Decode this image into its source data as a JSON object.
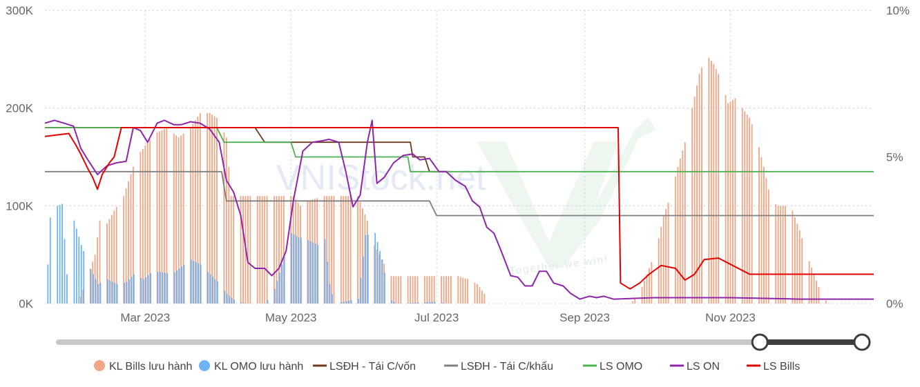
{
  "watermark": {
    "site": "VNIStock.net",
    "slogan": "Together we win!",
    "color": "#2e8b57"
  },
  "colors": {
    "bills_bar": "#f0a584",
    "omo_bar": "#6fb3f2",
    "lsdh_tai_cvon": "#6b3a1f",
    "lsdh_tai_ckhau": "#7f7f7f",
    "ls_omo": "#4caf50",
    "ls_on": "#8e24aa",
    "ls_bills": "#e00000",
    "grid": "#c8c8c8",
    "slider_track": "#c8c8c8",
    "slider_active": "#3c3c3c"
  },
  "slider": {
    "start_fraction": 0.86,
    "end_fraction": 1.0
  },
  "chart_data": {
    "type": "bar",
    "title": "",
    "xlabel": "",
    "ylabel": "",
    "x_range": [
      "2023-01-18",
      "2023-12-31"
    ],
    "x_ticks": [
      {
        "date": "2023-03-01",
        "label": "Mar 2023"
      },
      {
        "date": "2023-05-01",
        "label": "May 2023"
      },
      {
        "date": "2023-07-01",
        "label": "Jul 2023"
      },
      {
        "date": "2023-09-01",
        "label": "Sep 2023"
      },
      {
        "date": "2023-11-01",
        "label": "Nov 2023"
      }
    ],
    "y_left": {
      "min": 0,
      "max": 300000,
      "ticks": [
        0,
        100000,
        200000,
        300000
      ],
      "tick_labels": [
        "0K",
        "100K",
        "200K",
        "300K"
      ]
    },
    "y_right": {
      "min": 0,
      "max": 10,
      "ticks": [
        0,
        5,
        10
      ],
      "tick_labels": [
        "0%",
        "5%",
        "10%"
      ]
    },
    "grid": true,
    "legend_position": "bottom",
    "legend": [
      {
        "label": "KL Bills lưu hành",
        "marker": "circle",
        "color": "#f0a584"
      },
      {
        "label": "KL OMO lưu hành",
        "marker": "circle",
        "color": "#6fb3f2"
      },
      {
        "label": "LSĐH - Tái C/vốn",
        "marker": "line",
        "color": "#6b3a1f"
      },
      {
        "label": "LSĐH - Tái C/khấu",
        "marker": "line",
        "color": "#7f7f7f"
      },
      {
        "label": "LS OMO",
        "marker": "line",
        "color": "#4caf50"
      },
      {
        "label": "LS ON",
        "marker": "line",
        "color": "#8e24aa"
      },
      {
        "label": "LS Bills",
        "marker": "line",
        "color": "#e00000"
      }
    ],
    "bar_series": [
      {
        "name": "KL Bills lưu hành",
        "axis": "left",
        "points": [
          [
            "2023-01-19",
            0
          ],
          [
            "2023-02-01",
            0
          ],
          [
            "2023-02-08",
            50000
          ],
          [
            "2023-02-10",
            85000
          ],
          [
            "2023-02-13",
            82000
          ],
          [
            "2023-02-16",
            95000
          ],
          [
            "2023-02-20",
            110000
          ],
          [
            "2023-02-24",
            140000
          ],
          [
            "2023-02-27",
            155000
          ],
          [
            "2023-03-02",
            165000
          ],
          [
            "2023-03-06",
            175000
          ],
          [
            "2023-03-10",
            180000
          ],
          [
            "2023-03-15",
            170000
          ],
          [
            "2023-03-20",
            180000
          ],
          [
            "2023-03-24",
            195000
          ],
          [
            "2023-03-28",
            195000
          ],
          [
            "2023-03-31",
            190000
          ],
          [
            "2023-04-04",
            170000
          ],
          [
            "2023-04-06",
            110000
          ],
          [
            "2023-04-10",
            110000
          ],
          [
            "2023-04-17",
            110000
          ],
          [
            "2023-04-24",
            110000
          ],
          [
            "2023-05-02",
            110000
          ],
          [
            "2023-05-05",
            100000
          ],
          [
            "2023-05-08",
            105000
          ],
          [
            "2023-05-15",
            110000
          ],
          [
            "2023-05-22",
            110000
          ],
          [
            "2023-05-29",
            110000
          ],
          [
            "2023-06-02",
            85000
          ],
          [
            "2023-06-05",
            60000
          ],
          [
            "2023-06-08",
            45000
          ],
          [
            "2023-06-12",
            28000
          ],
          [
            "2023-06-19",
            28000
          ],
          [
            "2023-06-26",
            28000
          ],
          [
            "2023-07-03",
            28000
          ],
          [
            "2023-07-10",
            28000
          ],
          [
            "2023-07-14",
            25000
          ],
          [
            "2023-07-18",
            20000
          ],
          [
            "2023-07-21",
            10000
          ],
          [
            "2023-07-24",
            0
          ],
          [
            "2023-09-20",
            0
          ],
          [
            "2023-09-24",
            10000
          ],
          [
            "2023-09-27",
            30000
          ],
          [
            "2023-10-01",
            55000
          ],
          [
            "2023-10-04",
            90000
          ],
          [
            "2023-10-07",
            110000
          ],
          [
            "2023-10-10",
            140000
          ],
          [
            "2023-10-13",
            165000
          ],
          [
            "2023-10-16",
            200000
          ],
          [
            "2023-10-19",
            235000
          ],
          [
            "2023-10-22",
            255000
          ],
          [
            "2023-10-25",
            245000
          ],
          [
            "2023-10-28",
            230000
          ],
          [
            "2023-10-31",
            205000
          ],
          [
            "2023-11-03",
            210000
          ],
          [
            "2023-11-06",
            200000
          ],
          [
            "2023-11-09",
            190000
          ],
          [
            "2023-11-12",
            170000
          ],
          [
            "2023-11-15",
            140000
          ],
          [
            "2023-11-18",
            105000
          ],
          [
            "2023-11-21",
            100000
          ],
          [
            "2023-11-24",
            100000
          ],
          [
            "2023-11-27",
            95000
          ],
          [
            "2023-11-30",
            75000
          ],
          [
            "2023-12-03",
            50000
          ],
          [
            "2023-12-06",
            30000
          ],
          [
            "2023-12-09",
            10000
          ],
          [
            "2023-12-12",
            0
          ],
          [
            "2023-12-31",
            0
          ]
        ]
      },
      {
        "name": "KL OMO lưu hành",
        "axis": "left",
        "points": [
          [
            "2023-01-19",
            40000
          ],
          [
            "2023-01-20",
            88000
          ],
          [
            "2023-01-23",
            100000
          ],
          [
            "2023-01-25",
            102000
          ],
          [
            "2023-01-27",
            30000
          ],
          [
            "2023-01-30",
            85000
          ],
          [
            "2023-02-02",
            60000
          ],
          [
            "2023-02-06",
            35000
          ],
          [
            "2023-02-09",
            20000
          ],
          [
            "2023-02-13",
            25000
          ],
          [
            "2023-02-17",
            20000
          ],
          [
            "2023-02-21",
            22000
          ],
          [
            "2023-02-24",
            30000
          ],
          [
            "2023-02-28",
            25000
          ],
          [
            "2023-03-04",
            33000
          ],
          [
            "2023-03-08",
            32000
          ],
          [
            "2023-03-12",
            30000
          ],
          [
            "2023-03-16",
            38000
          ],
          [
            "2023-03-20",
            45000
          ],
          [
            "2023-03-24",
            40000
          ],
          [
            "2023-03-28",
            30000
          ],
          [
            "2023-04-01",
            20000
          ],
          [
            "2023-04-04",
            10000
          ],
          [
            "2023-04-08",
            2000
          ],
          [
            "2023-04-12",
            0
          ],
          [
            "2023-04-20",
            0
          ],
          [
            "2023-04-24",
            15000
          ],
          [
            "2023-04-27",
            40000
          ],
          [
            "2023-05-01",
            72000
          ],
          [
            "2023-05-04",
            68000
          ],
          [
            "2023-05-08",
            65000
          ],
          [
            "2023-05-12",
            60000
          ],
          [
            "2023-05-15",
            66000
          ],
          [
            "2023-05-17",
            20000
          ],
          [
            "2023-05-19",
            0
          ],
          [
            "2023-05-29",
            5000
          ],
          [
            "2023-06-01",
            70000
          ],
          [
            "2023-06-05",
            72000
          ],
          [
            "2023-06-08",
            45000
          ],
          [
            "2023-06-11",
            5000
          ],
          [
            "2023-06-14",
            0
          ],
          [
            "2023-07-01",
            2000
          ],
          [
            "2023-07-05",
            0
          ],
          [
            "2023-12-31",
            0
          ]
        ]
      }
    ],
    "series": [
      {
        "name": "LSĐH - Tái C/vốn",
        "axis": "right",
        "step": true,
        "points": [
          [
            "2023-01-18",
            6.0
          ],
          [
            "2023-04-16",
            6.0
          ],
          [
            "2023-04-20",
            5.5
          ],
          [
            "2023-06-20",
            5.5
          ],
          [
            "2023-06-21",
            5.0
          ],
          [
            "2023-06-26",
            5.0
          ],
          [
            "2023-06-28",
            4.5
          ],
          [
            "2023-07-05",
            4.5
          ]
        ]
      },
      {
        "name": "LSĐH - Tái C/khấu",
        "axis": "right",
        "step": true,
        "points": [
          [
            "2023-01-18",
            4.5
          ],
          [
            "2023-04-02",
            4.5
          ],
          [
            "2023-04-04",
            3.5
          ],
          [
            "2023-06-28",
            3.5
          ],
          [
            "2023-07-01",
            3.0
          ],
          [
            "2023-12-31",
            3.0
          ]
        ]
      },
      {
        "name": "LS OMO",
        "axis": "right",
        "step": true,
        "points": [
          [
            "2023-01-18",
            6.0
          ],
          [
            "2023-03-31",
            6.0
          ],
          [
            "2023-04-03",
            5.5
          ],
          [
            "2023-05-01",
            5.5
          ],
          [
            "2023-05-03",
            5.0
          ],
          [
            "2023-06-19",
            5.0
          ],
          [
            "2023-06-20",
            4.5
          ],
          [
            "2023-12-31",
            4.5
          ]
        ]
      },
      {
        "name": "LS ON",
        "axis": "right",
        "step": false,
        "points": [
          [
            "2023-01-18",
            6.15
          ],
          [
            "2023-01-22",
            6.25
          ],
          [
            "2023-01-26",
            6.15
          ],
          [
            "2023-01-30",
            6.05
          ],
          [
            "2023-02-02",
            5.3
          ],
          [
            "2023-02-05",
            4.9
          ],
          [
            "2023-02-09",
            4.4
          ],
          [
            "2023-02-13",
            4.7
          ],
          [
            "2023-02-17",
            4.8
          ],
          [
            "2023-02-21",
            4.85
          ],
          [
            "2023-02-24",
            6.0
          ],
          [
            "2023-02-27",
            5.9
          ],
          [
            "2023-03-02",
            5.5
          ],
          [
            "2023-03-06",
            6.15
          ],
          [
            "2023-03-09",
            6.25
          ],
          [
            "2023-03-13",
            6.1
          ],
          [
            "2023-03-16",
            6.1
          ],
          [
            "2023-03-20",
            6.2
          ],
          [
            "2023-03-24",
            6.15
          ],
          [
            "2023-03-28",
            5.95
          ],
          [
            "2023-04-01",
            5.5
          ],
          [
            "2023-04-04",
            4.2
          ],
          [
            "2023-04-07",
            3.8
          ],
          [
            "2023-04-10",
            3.0
          ],
          [
            "2023-04-13",
            1.4
          ],
          [
            "2023-04-16",
            1.2
          ],
          [
            "2023-04-20",
            1.2
          ],
          [
            "2023-04-23",
            0.95
          ],
          [
            "2023-04-26",
            1.2
          ],
          [
            "2023-04-29",
            1.8
          ],
          [
            "2023-05-02",
            3.5
          ],
          [
            "2023-05-06",
            5.2
          ],
          [
            "2023-05-10",
            5.5
          ],
          [
            "2023-05-14",
            5.55
          ],
          [
            "2023-05-17",
            5.6
          ],
          [
            "2023-05-21",
            5.5
          ],
          [
            "2023-05-24",
            4.5
          ],
          [
            "2023-05-27",
            3.3
          ],
          [
            "2023-05-30",
            3.7
          ],
          [
            "2023-06-02",
            5.5
          ],
          [
            "2023-06-04",
            6.25
          ],
          [
            "2023-06-06",
            4.1
          ],
          [
            "2023-06-09",
            4.3
          ],
          [
            "2023-06-13",
            4.8
          ],
          [
            "2023-06-17",
            5.05
          ],
          [
            "2023-06-21",
            5.1
          ],
          [
            "2023-06-24",
            4.9
          ],
          [
            "2023-06-28",
            4.95
          ],
          [
            "2023-07-02",
            4.5
          ],
          [
            "2023-07-05",
            4.5
          ],
          [
            "2023-07-09",
            4.2
          ],
          [
            "2023-07-13",
            4.0
          ],
          [
            "2023-07-16",
            3.5
          ],
          [
            "2023-07-19",
            3.3
          ],
          [
            "2023-07-22",
            2.6
          ],
          [
            "2023-07-25",
            2.4
          ],
          [
            "2023-07-28",
            1.8
          ],
          [
            "2023-08-01",
            0.95
          ],
          [
            "2023-08-04",
            0.9
          ],
          [
            "2023-08-07",
            0.6
          ],
          [
            "2023-08-10",
            0.6
          ],
          [
            "2023-08-13",
            1.1
          ],
          [
            "2023-08-16",
            1.1
          ],
          [
            "2023-08-19",
            0.7
          ],
          [
            "2023-08-23",
            0.6
          ],
          [
            "2023-08-26",
            0.35
          ],
          [
            "2023-08-30",
            0.15
          ],
          [
            "2023-09-03",
            0.25
          ],
          [
            "2023-09-06",
            0.2
          ],
          [
            "2023-09-09",
            0.25
          ],
          [
            "2023-09-13",
            0.15
          ],
          [
            "2023-09-30",
            0.2
          ],
          [
            "2023-10-15",
            0.2
          ],
          [
            "2023-11-01",
            0.2
          ],
          [
            "2023-11-30",
            0.15
          ],
          [
            "2023-12-31",
            0.15
          ]
        ]
      },
      {
        "name": "LS Bills",
        "axis": "right",
        "step": true,
        "points": [
          [
            "2023-01-18",
            5.7
          ],
          [
            "2023-01-28",
            5.8
          ],
          [
            "2023-01-31",
            5.4
          ],
          [
            "2023-02-02",
            5.1
          ],
          [
            "2023-02-05",
            4.6
          ],
          [
            "2023-02-07",
            4.3
          ],
          [
            "2023-02-09",
            3.9
          ],
          [
            "2023-02-11",
            4.4
          ],
          [
            "2023-02-14",
            4.8
          ],
          [
            "2023-02-16",
            5.0
          ],
          [
            "2023-02-19",
            6.0
          ],
          [
            "2023-09-15",
            6.0
          ],
          [
            "2023-09-16",
            0.7
          ],
          [
            "2023-09-20",
            0.5
          ],
          [
            "2023-09-24",
            0.7
          ],
          [
            "2023-09-28",
            1.0
          ],
          [
            "2023-10-03",
            1.3
          ],
          [
            "2023-10-09",
            1.2
          ],
          [
            "2023-10-13",
            0.8
          ],
          [
            "2023-10-17",
            1.0
          ],
          [
            "2023-10-21",
            1.5
          ],
          [
            "2023-10-27",
            1.55
          ],
          [
            "2023-11-09",
            1.0
          ],
          [
            "2023-12-31",
            1.0
          ]
        ]
      }
    ]
  }
}
